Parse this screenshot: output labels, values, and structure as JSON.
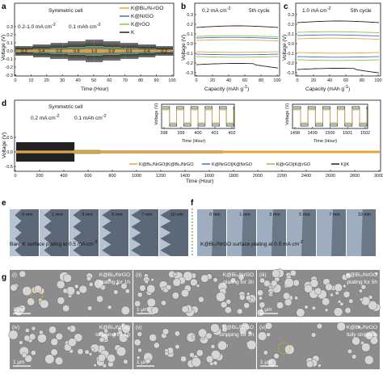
{
  "panel_a": {
    "label": "a",
    "title": "Symmetric cell",
    "annotation_rate": "0.2-1.0 mA cm",
    "annotation_rate_sup": "-2",
    "annotation_capacity": "0.1 mAh cm",
    "annotation_capacity_sup": "-2",
    "xlabel": "Time (Hour)",
    "ylabel": "Voltage (V)",
    "x_ticks": [
      "0",
      "10",
      "20",
      "30",
      "40",
      "50",
      "60",
      "70",
      "80",
      "90",
      "100"
    ],
    "y_ticks": [
      "0.3",
      "0.2",
      "0.1",
      "0.0",
      "-0.1",
      "-0.2",
      "-0.3"
    ],
    "rate_labels": [
      "0.2",
      "0.4",
      "0.6",
      "0.8",
      "1.0",
      "0.8",
      "0.6",
      "0.4",
      "0.2"
    ],
    "legend": [
      "K@Bi₀/N-rGO",
      "K@NrGO",
      "K@rGO",
      "K"
    ]
  },
  "panel_b": {
    "label": "b",
    "annotation": "0.2 mA cm",
    "annotation_sup": "-2",
    "cycle": "5th cycle",
    "xlabel": "Capacity (mAh g",
    "xlabel_sup": "-1",
    "xlabel_end": ")",
    "ylabel": "Voltage (V)",
    "x_ticks": [
      "0",
      "20",
      "40",
      "60",
      "80",
      "100"
    ],
    "y_ticks": [
      "0.3",
      "0.2",
      "0.1",
      "0.0",
      "-0.1",
      "-0.2",
      "-0.3"
    ]
  },
  "panel_c": {
    "label": "c",
    "annotation": "1.0 mA cm",
    "annotation_sup": "-2",
    "cycle": "5th cycle",
    "xlabel": "Capacity (mAh g",
    "xlabel_sup": "-1",
    "xlabel_end": ")",
    "ylabel": "Voltage (V)",
    "x_ticks": [
      "0",
      "20",
      "40",
      "60",
      "80",
      "100"
    ],
    "y_ticks": [
      "0.3",
      "0.2",
      "0.1",
      "0.0",
      "-0.1",
      "-0.2",
      "-0.3"
    ]
  },
  "panel_d": {
    "label": "d",
    "title": "Symmetric cell",
    "annotation_rate": "0.2 mA cm",
    "annotation_rate_sup": "-2",
    "annotation_capacity": "0.1 mAh cm",
    "annotation_capacity_sup": "-2",
    "xlabel": "Time (Hour)",
    "ylabel": "Voltage (V)",
    "x_ticks": [
      "0",
      "200",
      "400",
      "600",
      "800",
      "1000",
      "1200",
      "1400",
      "1600",
      "1800",
      "2000",
      "2200",
      "2400",
      "2600",
      "2800",
      "3000"
    ],
    "y_ticks": [
      "0.5",
      "0.0",
      "-0.5"
    ],
    "inset1_ticks": [
      "398",
      "399",
      "400",
      "401",
      "402"
    ],
    "inset2_ticks": [
      "1498",
      "1499",
      "1500",
      "1501",
      "1502"
    ],
    "inset_xlabel": "Time (Hour)",
    "inset_ylabel": "Voltage (V)",
    "legend": [
      "K@Bi₀/NrGO||K@Bi₀/NrGO",
      "K@NrGO||K@NrGO",
      "K@rGO||K@rGO",
      "K||K"
    ]
  },
  "panel_e": {
    "label": "e",
    "times": [
      "0 min",
      "1 min",
      "3 min",
      "5 min",
      "7 min",
      "10 min"
    ],
    "caption": "Bare K surface plating at 0.5 mA cm",
    "caption_sup": "-2"
  },
  "panel_f": {
    "label": "f",
    "times": [
      "0 min",
      "1 min",
      "3 min",
      "5 min",
      "7 min",
      "10 min"
    ],
    "caption": "K@Bi₀/NrGO surface plating at 0.5 mA cm",
    "caption_sup": "-2"
  },
  "panel_g": {
    "label": "g",
    "tiles": [
      {
        "index": "(i)",
        "title": "K@Bi₀/NrGO",
        "subtitle": "plating for 1h",
        "scale": "1 μm"
      },
      {
        "index": "(ii)",
        "title": "K@Bi₀/NrGO",
        "subtitle": "plating for 3h",
        "scale": "1 μm"
      },
      {
        "index": "(iii)",
        "title": "K@Bi₀/NrGO",
        "subtitle": "plating for 5h",
        "scale": "1 μm"
      },
      {
        "index": "(iv)",
        "title": "K@Bi₀/NrGO",
        "subtitle": "stripping for 1h",
        "scale": "1 μm"
      },
      {
        "index": "(v)",
        "title": "K@Bi₀/NrGO",
        "subtitle": "stripping for 3h",
        "scale": "1 μm"
      },
      {
        "index": "(vi)",
        "title": "K@Bi₀/NrGO",
        "subtitle": "fully stripping",
        "scale": "1 μm"
      }
    ]
  },
  "colors": {
    "bi_nrgo": "#e8a33a",
    "nrgo": "#3a6fd0",
    "rgo": "#8fbf4d",
    "k": "#222222",
    "sem_bg": "#8c8c8c",
    "optical_bg": "#a9b6c6"
  }
}
